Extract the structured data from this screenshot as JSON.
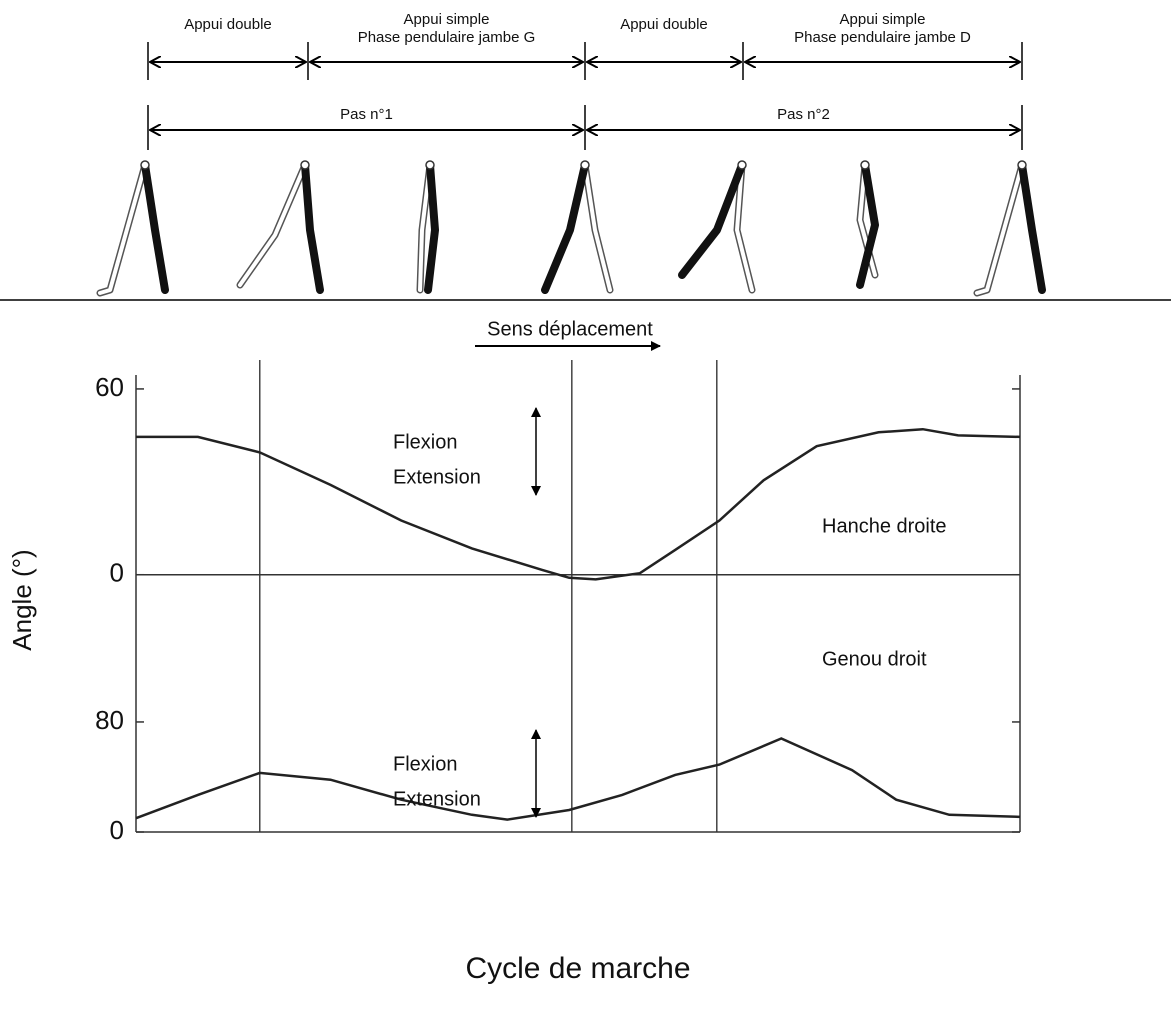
{
  "phases": [
    [
      "Appui double"
    ],
    [
      "Appui simple",
      "Phase pendulaire jambe G"
    ],
    [
      "Appui double"
    ],
    [
      "Appui simple",
      "Phase pendulaire jambe D"
    ]
  ],
  "steps": [
    "Pas n°1",
    "Pas n°2"
  ],
  "direction": "Sens déplacement",
  "ylabel": "Angle (°)",
  "xlabel": "Cycle de marche",
  "xlim": [
    0,
    100
  ],
  "vlines": [
    14,
    49.3,
    65.7
  ],
  "chart_data": [
    {
      "type": "line",
      "xlim": [
        0,
        100
      ],
      "ylim": [
        -34,
        64.5
      ],
      "yticks": [
        0,
        60
      ],
      "zeroline": true,
      "annotations": [
        "Flexion",
        "Extension"
      ],
      "x": [
        0,
        7,
        14,
        22,
        30,
        38,
        46,
        49,
        52,
        57,
        61,
        66,
        71,
        77,
        84,
        89,
        93,
        100
      ],
      "series": [
        {
          "name": "Hanche droite",
          "color": "#222222",
          "values": [
            44.5,
            44.5,
            39.5,
            29,
            17.5,
            8.5,
            1.5,
            -1,
            -1.5,
            0.5,
            8,
            17.5,
            30.5,
            41.5,
            46,
            47,
            45,
            44.5
          ]
        }
      ]
    },
    {
      "type": "line",
      "xlim": [
        0,
        100
      ],
      "ylim": [
        0,
        110.5
      ],
      "yticks": [
        0,
        80
      ],
      "zeroline": false,
      "annotations": [
        "Flexion",
        "Extension"
      ],
      "x": [
        0,
        7,
        14,
        22,
        30,
        38,
        42,
        49,
        55,
        61,
        66,
        73,
        81,
        86,
        92,
        100
      ],
      "series": [
        {
          "name": "Genou droit",
          "color": "#222222",
          "values": [
            10,
            27,
            43,
            38,
            23.5,
            12.5,
            9,
            16,
            27,
            41.5,
            49,
            68,
            45,
            23.5,
            12.5,
            11
          ]
        }
      ]
    }
  ]
}
